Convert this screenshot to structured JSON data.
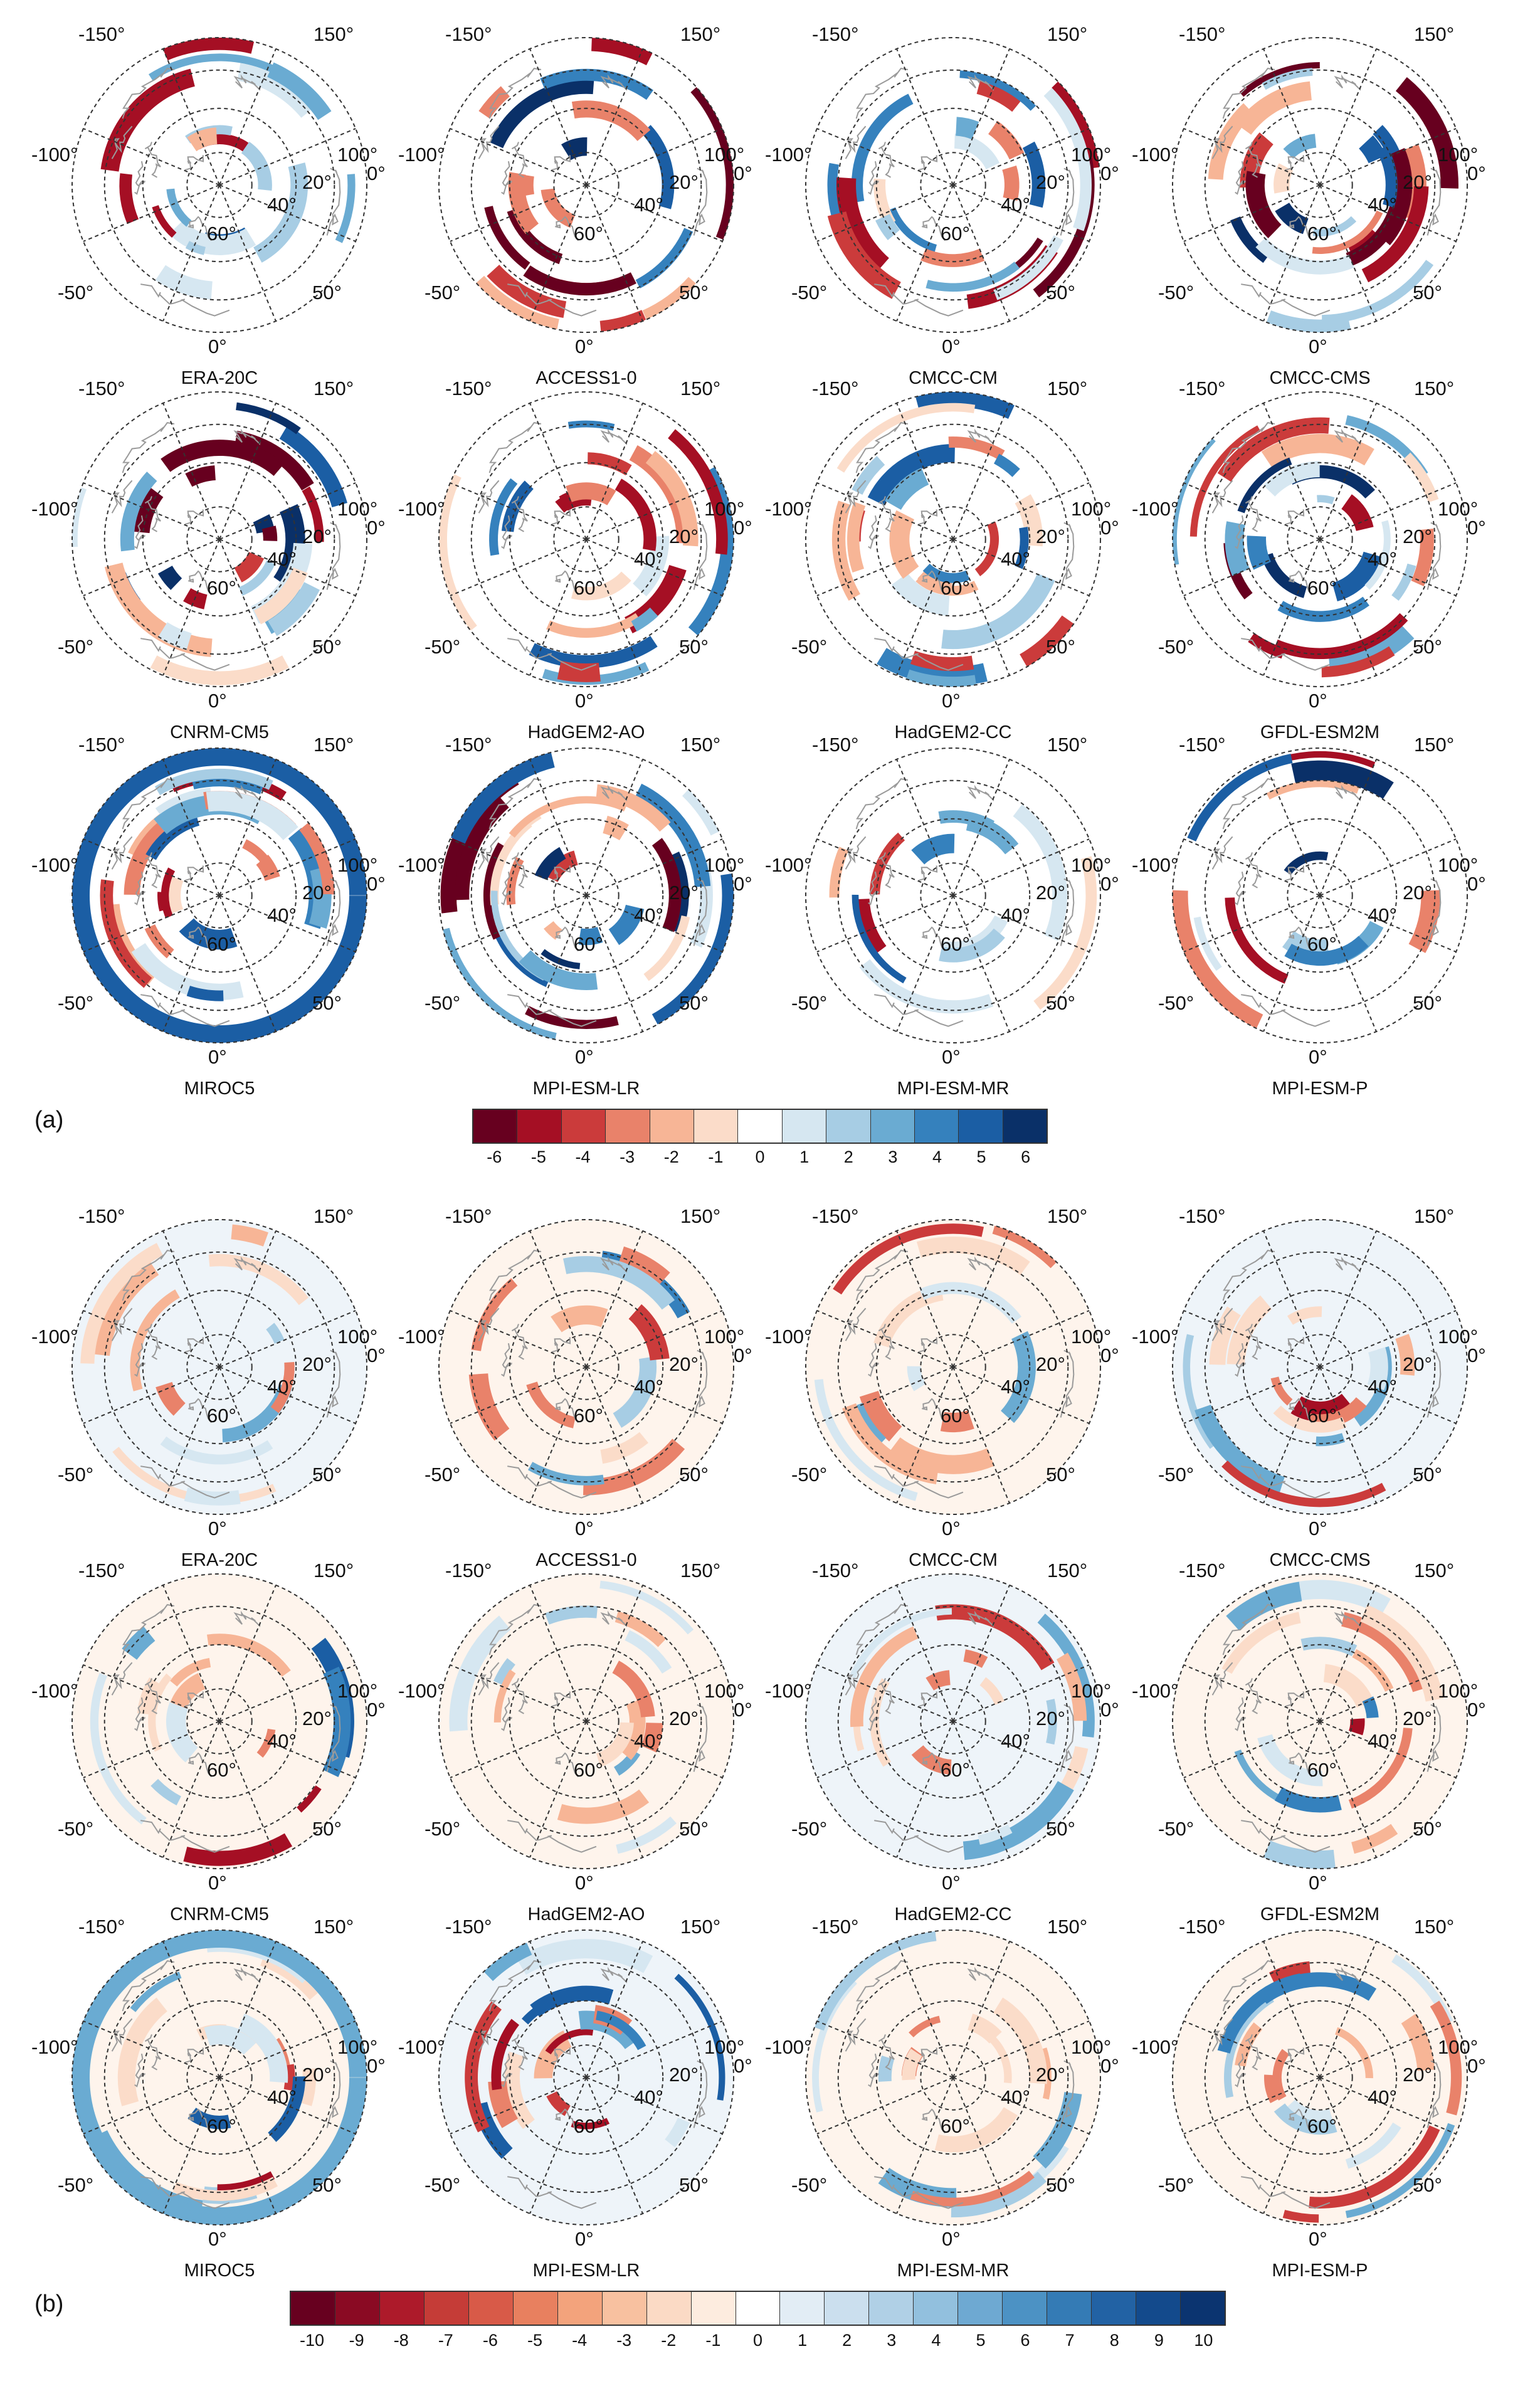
{
  "panels": [
    {
      "letter": "(a)",
      "models": [
        "ERA-20C",
        "ACCESS1-0",
        "CMCC-CM",
        "CMCC-CMS",
        "CNRM-CM5",
        "HadGEM2-AO",
        "HadGEM2-CC",
        "GFDL-ESM2M",
        "MIROC5",
        "MPI-ESM-LR",
        "MPI-ESM-MR",
        "MPI-ESM-P"
      ],
      "colorbar": {
        "ticks": [
          "-6",
          "-5",
          "-4",
          "-3",
          "-2",
          "-1",
          "0",
          "1",
          "2",
          "3",
          "4",
          "5",
          "6"
        ],
        "colors": [
          "#67001f",
          "#a50f24",
          "#cb3b3b",
          "#e9826a",
          "#f7b596",
          "#fbdcc9",
          "#ffffff",
          "#d6e7f1",
          "#a7cde4",
          "#6aabd2",
          "#3581bd",
          "#1b5ea4",
          "#0a3068"
        ]
      }
    },
    {
      "letter": "(b)",
      "models": [
        "ERA-20C",
        "ACCESS1-0",
        "CMCC-CM",
        "CMCC-CMS",
        "CNRM-CM5",
        "HadGEM2-AO",
        "HadGEM2-CC",
        "GFDL-ESM2M",
        "MIROC5",
        "MPI-ESM-LR",
        "MPI-ESM-MR",
        "MPI-ESM-P"
      ],
      "colorbar": {
        "ticks": [
          "-10",
          "-9",
          "-8",
          "-7",
          "-6",
          "-5",
          "-4",
          "-3",
          "-2",
          "-1",
          "0",
          "1",
          "2",
          "3",
          "4",
          "5",
          "6",
          "7",
          "8",
          "9",
          "10"
        ],
        "colors": [
          "#67001f",
          "#8a0a23",
          "#ad1a2a",
          "#c53c37",
          "#d85a48",
          "#e8805f",
          "#f3a37c",
          "#f8c1a0",
          "#fbdac5",
          "#fdecdf",
          "#ffffff",
          "#e2edf5",
          "#cbdfee",
          "#b0d0e6",
          "#92c0de",
          "#6ea9d2",
          "#4c92c4",
          "#347bb5",
          "#2262a4",
          "#134a8c",
          "#0b3470"
        ]
      }
    }
  ],
  "map_labels": {
    "lon_top_left": "-150°",
    "lon_top_right": "150°",
    "lon_left": "-100°",
    "lon_right_100": "100°",
    "lon_right_0": "0°",
    "lon_bottom_left": "-50°",
    "lon_bottom_right": "50°",
    "lon_bottom": "0°",
    "lat_20": "20°",
    "lat_40": "40°",
    "lat_60": "60°"
  },
  "colors": {
    "grid": "#333333",
    "coast": "#9a9a9a"
  }
}
